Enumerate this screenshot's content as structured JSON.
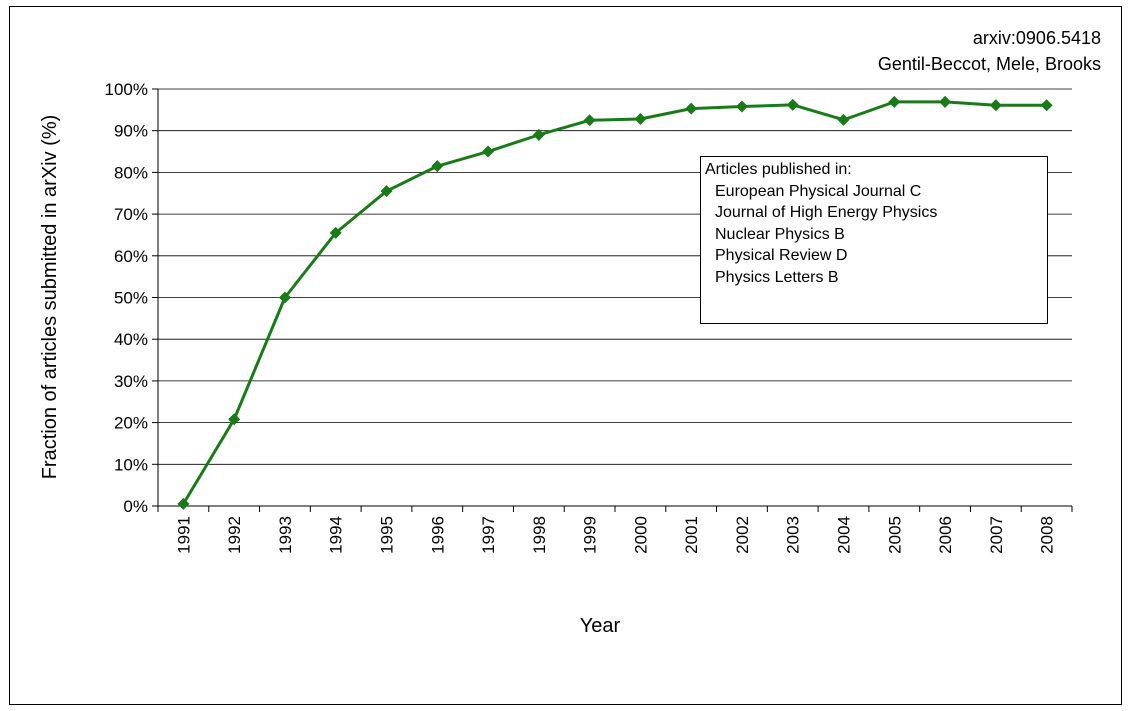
{
  "notes": [
    "arxiv:0906.5418",
    "Gentil-Beccot, Mele, Brooks"
  ],
  "legend": {
    "title": "Articles published in:",
    "entries": [
      "European Physical Journal C",
      "Journal of High Energy Physics",
      "Nuclear Physics B",
      "Physical Review D",
      "Physics Letters B"
    ]
  },
  "colors": {
    "series": "#1a7a1a",
    "grid": "#000000"
  },
  "chart_data": {
    "type": "line",
    "title": "",
    "xlabel": "Year",
    "ylabel": "Fraction of articles submitted in arXiv (%)",
    "ylim": [
      0,
      100
    ],
    "yticks": [
      "0%",
      "10%",
      "20%",
      "30%",
      "40%",
      "50%",
      "60%",
      "70%",
      "80%",
      "90%",
      "100%"
    ],
    "grid": "horizontal",
    "x": [
      "1991",
      "1992",
      "1993",
      "1994",
      "1995",
      "1996",
      "1997",
      "1998",
      "1999",
      "2000",
      "2001",
      "2002",
      "2003",
      "2004",
      "2005",
      "2006",
      "2007",
      "2008"
    ],
    "series": [
      {
        "values": [
          0.5,
          20.8,
          50.0,
          65.5,
          75.5,
          81.5,
          85.0,
          89.0,
          92.5,
          92.8,
          95.3,
          95.8,
          96.2,
          92.6,
          96.9,
          96.9,
          96.1,
          96.1
        ]
      }
    ],
    "marker": "diamond"
  }
}
